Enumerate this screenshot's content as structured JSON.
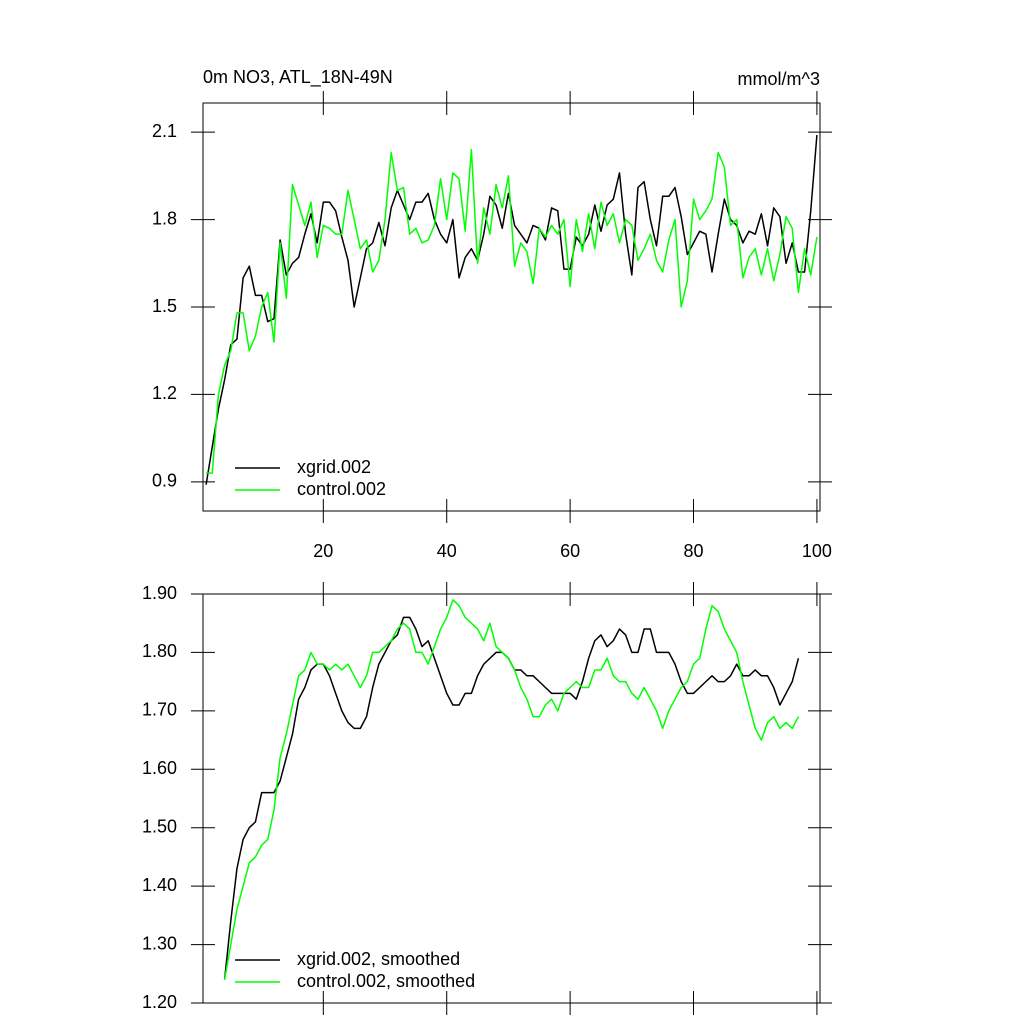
{
  "chart_data": [
    {
      "type": "line",
      "title": "0m NO3, ATL_18N-49N",
      "subtitle": "mmol/m^3",
      "x": [
        1,
        2,
        3,
        4,
        5,
        6,
        7,
        8,
        9,
        10,
        11,
        12,
        13,
        14,
        15,
        16,
        17,
        18,
        19,
        20,
        21,
        22,
        23,
        24,
        25,
        26,
        27,
        28,
        29,
        30,
        31,
        32,
        33,
        34,
        35,
        36,
        37,
        38,
        39,
        40,
        41,
        42,
        43,
        44,
        45,
        46,
        47,
        48,
        49,
        50,
        51,
        52,
        53,
        54,
        55,
        56,
        57,
        58,
        59,
        60,
        61,
        62,
        63,
        64,
        65,
        66,
        67,
        68,
        69,
        70,
        71,
        72,
        73,
        74,
        75,
        76,
        77,
        78,
        79,
        80,
        81,
        82,
        83,
        84,
        85,
        86,
        87,
        88,
        89,
        90,
        91,
        92,
        93,
        94,
        95,
        96,
        97,
        98,
        99,
        100
      ],
      "series": [
        {
          "name": "xgrid.002",
          "color": "#000000",
          "values": [
            0.89,
            1.02,
            1.15,
            1.25,
            1.37,
            1.39,
            1.6,
            1.64,
            1.54,
            1.54,
            1.45,
            1.46,
            1.73,
            1.61,
            1.65,
            1.67,
            1.75,
            1.82,
            1.72,
            1.86,
            1.86,
            1.83,
            1.74,
            1.66,
            1.5,
            1.6,
            1.7,
            1.72,
            1.79,
            1.71,
            1.84,
            1.9,
            1.85,
            1.8,
            1.86,
            1.86,
            1.89,
            1.8,
            1.75,
            1.72,
            1.8,
            1.6,
            1.67,
            1.7,
            1.66,
            1.75,
            1.88,
            1.85,
            1.77,
            1.89,
            1.78,
            1.75,
            1.72,
            1.78,
            1.77,
            1.73,
            1.84,
            1.83,
            1.63,
            1.63,
            1.74,
            1.71,
            1.75,
            1.85,
            1.76,
            1.85,
            1.87,
            1.96,
            1.75,
            1.61,
            1.91,
            1.93,
            1.8,
            1.71,
            1.88,
            1.88,
            1.91,
            1.81,
            1.68,
            1.72,
            1.76,
            1.75,
            1.62,
            1.75,
            1.87,
            1.8,
            1.78,
            1.72,
            1.76,
            1.75,
            1.82,
            1.71,
            1.84,
            1.81,
            1.65,
            1.72,
            1.62,
            1.62,
            1.83,
            2.09
          ]
        },
        {
          "name": "control.002",
          "color": "#00ff00",
          "values": [
            0.93,
            0.93,
            1.2,
            1.3,
            1.35,
            1.48,
            1.48,
            1.35,
            1.4,
            1.5,
            1.55,
            1.38,
            1.72,
            1.53,
            1.92,
            1.85,
            1.78,
            1.86,
            1.67,
            1.78,
            1.77,
            1.75,
            1.75,
            1.9,
            1.8,
            1.7,
            1.73,
            1.62,
            1.66,
            1.8,
            2.03,
            1.9,
            1.91,
            1.75,
            1.77,
            1.72,
            1.73,
            1.78,
            1.94,
            1.8,
            1.96,
            1.94,
            1.76,
            2.04,
            1.65,
            1.84,
            1.75,
            1.92,
            1.84,
            1.95,
            1.64,
            1.72,
            1.69,
            1.58,
            1.77,
            1.74,
            1.78,
            1.75,
            1.8,
            1.57,
            1.8,
            1.69,
            1.82,
            1.7,
            1.86,
            1.78,
            1.82,
            1.72,
            1.8,
            1.78,
            1.66,
            1.7,
            1.75,
            1.66,
            1.62,
            1.73,
            1.8,
            1.5,
            1.59,
            1.87,
            1.8,
            1.83,
            1.87,
            2.03,
            1.98,
            1.78,
            1.8,
            1.6,
            1.67,
            1.7,
            1.61,
            1.7,
            1.59,
            1.68,
            1.81,
            1.77,
            1.55,
            1.7,
            1.61,
            1.74
          ]
        }
      ],
      "xlim": [
        0.5,
        100.5
      ],
      "xticks": [
        20,
        40,
        60,
        80,
        100
      ],
      "ylim": [
        0.8,
        2.2
      ],
      "yticks": [
        0.9,
        1.2,
        1.5,
        1.8,
        2.1
      ],
      "legend": "lower left"
    },
    {
      "type": "line",
      "x": [
        4,
        5,
        6,
        7,
        8,
        9,
        10,
        11,
        12,
        13,
        14,
        15,
        16,
        17,
        18,
        19,
        20,
        21,
        22,
        23,
        24,
        25,
        26,
        27,
        28,
        29,
        30,
        31,
        32,
        33,
        34,
        35,
        36,
        37,
        38,
        39,
        40,
        41,
        42,
        43,
        44,
        45,
        46,
        47,
        48,
        49,
        50,
        51,
        52,
        53,
        54,
        55,
        56,
        57,
        58,
        59,
        60,
        61,
        62,
        63,
        64,
        65,
        66,
        67,
        68,
        69,
        70,
        71,
        72,
        73,
        74,
        75,
        76,
        77,
        78,
        79,
        80,
        81,
        82,
        83,
        84,
        85,
        86,
        87,
        88,
        89,
        90,
        91,
        92,
        93,
        94,
        95,
        96,
        97
      ],
      "series": [
        {
          "name": "xgrid.002, smoothed",
          "color": "#000000",
          "values": [
            1.24,
            1.34,
            1.43,
            1.48,
            1.5,
            1.51,
            1.56,
            1.56,
            1.56,
            1.58,
            1.62,
            1.66,
            1.72,
            1.74,
            1.77,
            1.78,
            1.78,
            1.76,
            1.73,
            1.7,
            1.68,
            1.67,
            1.67,
            1.69,
            1.74,
            1.78,
            1.8,
            1.82,
            1.83,
            1.86,
            1.86,
            1.84,
            1.81,
            1.82,
            1.79,
            1.76,
            1.73,
            1.71,
            1.71,
            1.73,
            1.73,
            1.76,
            1.78,
            1.79,
            1.8,
            1.8,
            1.79,
            1.77,
            1.77,
            1.76,
            1.76,
            1.75,
            1.74,
            1.73,
            1.73,
            1.73,
            1.73,
            1.72,
            1.75,
            1.79,
            1.82,
            1.83,
            1.81,
            1.82,
            1.84,
            1.83,
            1.8,
            1.8,
            1.84,
            1.84,
            1.8,
            1.8,
            1.8,
            1.78,
            1.75,
            1.73,
            1.73,
            1.74,
            1.75,
            1.76,
            1.75,
            1.75,
            1.76,
            1.78,
            1.76,
            1.76,
            1.77,
            1.76,
            1.76,
            1.74,
            1.71,
            1.73,
            1.75,
            1.79
          ]
        },
        {
          "name": "control.002, smoothed",
          "color": "#00ff00",
          "values": [
            1.24,
            1.3,
            1.36,
            1.4,
            1.44,
            1.45,
            1.47,
            1.48,
            1.53,
            1.62,
            1.66,
            1.71,
            1.76,
            1.77,
            1.8,
            1.78,
            1.78,
            1.77,
            1.78,
            1.77,
            1.78,
            1.76,
            1.74,
            1.76,
            1.8,
            1.8,
            1.81,
            1.82,
            1.84,
            1.85,
            1.84,
            1.8,
            1.8,
            1.78,
            1.81,
            1.84,
            1.86,
            1.89,
            1.88,
            1.86,
            1.85,
            1.84,
            1.82,
            1.85,
            1.81,
            1.8,
            1.79,
            1.77,
            1.74,
            1.72,
            1.69,
            1.69,
            1.71,
            1.72,
            1.7,
            1.73,
            1.74,
            1.75,
            1.74,
            1.74,
            1.77,
            1.77,
            1.79,
            1.76,
            1.75,
            1.75,
            1.73,
            1.72,
            1.74,
            1.72,
            1.7,
            1.67,
            1.7,
            1.72,
            1.74,
            1.75,
            1.78,
            1.79,
            1.84,
            1.88,
            1.87,
            1.84,
            1.82,
            1.8,
            1.75,
            1.71,
            1.67,
            1.65,
            1.68,
            1.69,
            1.67,
            1.68,
            1.67,
            1.69
          ]
        }
      ],
      "xlim": [
        0.5,
        100.5
      ],
      "ylim": [
        1.2,
        1.9
      ],
      "yticks": [
        {
          "value": 1.2,
          "label": "1.20"
        },
        {
          "value": 1.3,
          "label": "1.30"
        },
        {
          "value": 1.4,
          "label": "1.40"
        },
        {
          "value": 1.5,
          "label": "1.50"
        },
        {
          "value": 1.6,
          "label": "1.60"
        },
        {
          "value": 1.7,
          "label": "1.70"
        },
        {
          "value": 1.8,
          "label": "1.80"
        },
        {
          "value": 1.9,
          "label": "1.90"
        }
      ],
      "legend": "lower left"
    }
  ]
}
